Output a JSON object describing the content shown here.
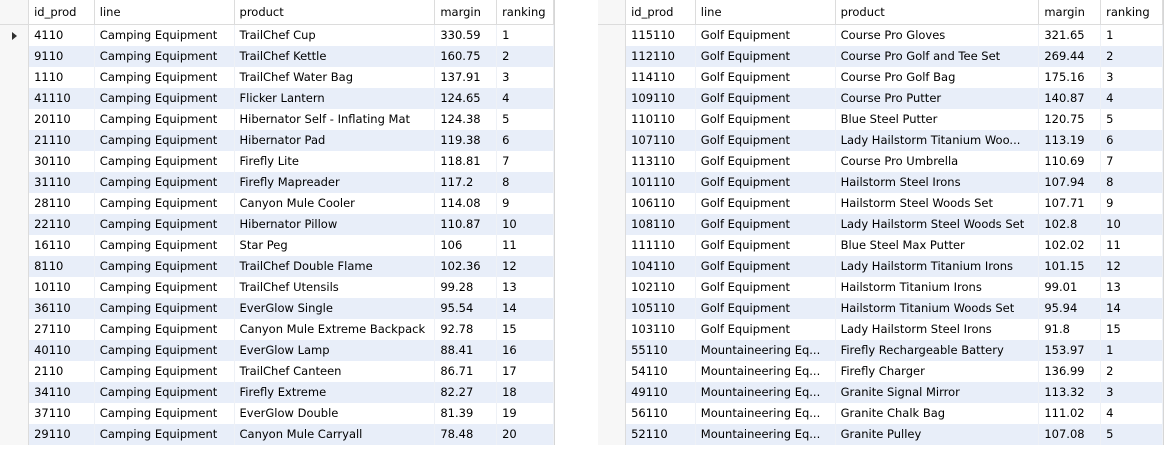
{
  "columns": [
    "id_prod",
    "line",
    "product",
    "margin",
    "ranking"
  ],
  "left_rows": [
    [
      "4110",
      "Camping Equipment",
      "TrailChef Cup",
      "330.59",
      "1"
    ],
    [
      "9110",
      "Camping Equipment",
      "TrailChef Kettle",
      "160.75",
      "2"
    ],
    [
      "1110",
      "Camping Equipment",
      "TrailChef Water Bag",
      "137.91",
      "3"
    ],
    [
      "41110",
      "Camping Equipment",
      "Flicker Lantern",
      "124.65",
      "4"
    ],
    [
      "20110",
      "Camping Equipment",
      "Hibernator Self - Inflating Mat",
      "124.38",
      "5"
    ],
    [
      "21110",
      "Camping Equipment",
      "Hibernator Pad",
      "119.38",
      "6"
    ],
    [
      "30110",
      "Camping Equipment",
      "Firefly Lite",
      "118.81",
      "7"
    ],
    [
      "31110",
      "Camping Equipment",
      "Firefly Mapreader",
      "117.2",
      "8"
    ],
    [
      "28110",
      "Camping Equipment",
      "Canyon Mule Cooler",
      "114.08",
      "9"
    ],
    [
      "22110",
      "Camping Equipment",
      "Hibernator Pillow",
      "110.87",
      "10"
    ],
    [
      "16110",
      "Camping Equipment",
      "Star Peg",
      "106",
      "11"
    ],
    [
      "8110",
      "Camping Equipment",
      "TrailChef Double Flame",
      "102.36",
      "12"
    ],
    [
      "10110",
      "Camping Equipment",
      "TrailChef Utensils",
      "99.28",
      "13"
    ],
    [
      "36110",
      "Camping Equipment",
      "EverGlow Single",
      "95.54",
      "14"
    ],
    [
      "27110",
      "Camping Equipment",
      "Canyon Mule Extreme Backpack",
      "92.78",
      "15"
    ],
    [
      "40110",
      "Camping Equipment",
      "EverGlow Lamp",
      "88.41",
      "16"
    ],
    [
      "2110",
      "Camping Equipment",
      "TrailChef Canteen",
      "86.71",
      "17"
    ],
    [
      "34110",
      "Camping Equipment",
      "Firefly Extreme",
      "82.27",
      "18"
    ],
    [
      "37110",
      "Camping Equipment",
      "EverGlow Double",
      "81.39",
      "19"
    ],
    [
      "29110",
      "Camping Equipment",
      "Canyon Mule Carryall",
      "78.48",
      "20"
    ]
  ],
  "right_rows": [
    [
      "115110",
      "Golf Equipment",
      "Course Pro Gloves",
      "321.65",
      "1"
    ],
    [
      "112110",
      "Golf Equipment",
      "Course Pro Golf and Tee Set",
      "269.44",
      "2"
    ],
    [
      "114110",
      "Golf Equipment",
      "Course Pro Golf Bag",
      "175.16",
      "3"
    ],
    [
      "109110",
      "Golf Equipment",
      "Course Pro Putter",
      "140.87",
      "4"
    ],
    [
      "110110",
      "Golf Equipment",
      "Blue Steel Putter",
      "120.75",
      "5"
    ],
    [
      "107110",
      "Golf Equipment",
      "Lady Hailstorm Titanium Woo...",
      "113.19",
      "6"
    ],
    [
      "113110",
      "Golf Equipment",
      "Course Pro Umbrella",
      "110.69",
      "7"
    ],
    [
      "101110",
      "Golf Equipment",
      "Hailstorm Steel Irons",
      "107.94",
      "8"
    ],
    [
      "106110",
      "Golf Equipment",
      "Hailstorm Steel Woods Set",
      "107.71",
      "9"
    ],
    [
      "108110",
      "Golf Equipment",
      "Lady Hailstorm Steel Woods Set",
      "102.8",
      "10"
    ],
    [
      "111110",
      "Golf Equipment",
      "Blue Steel Max Putter",
      "102.02",
      "11"
    ],
    [
      "104110",
      "Golf Equipment",
      "Lady Hailstorm Titanium Irons",
      "101.15",
      "12"
    ],
    [
      "102110",
      "Golf Equipment",
      "Hailstorm Titanium Irons",
      "99.01",
      "13"
    ],
    [
      "105110",
      "Golf Equipment",
      "Hailstorm Titanium Woods Set",
      "95.94",
      "14"
    ],
    [
      "103110",
      "Golf Equipment",
      "Lady Hailstorm Steel Irons",
      "91.8",
      "15"
    ],
    [
      "55110",
      "Mountaineering Eq...",
      "Firefly Rechargeable Battery",
      "153.97",
      "1"
    ],
    [
      "54110",
      "Mountaineering Eq...",
      "Firefly Charger",
      "136.99",
      "2"
    ],
    [
      "49110",
      "Mountaineering Eq...",
      "Granite Signal Mirror",
      "113.32",
      "3"
    ],
    [
      "56110",
      "Mountaineering Eq...",
      "Granite Chalk Bag",
      "111.02",
      "4"
    ],
    [
      "52110",
      "Mountaineering Eq...",
      "Granite Pulley",
      "107.08",
      "5"
    ]
  ],
  "colors": {
    "row_alt": "#e8eef9",
    "row": "#ffffff",
    "header": "#ffffff"
  }
}
